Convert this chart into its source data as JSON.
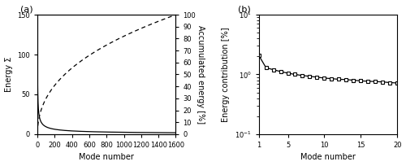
{
  "panel_a": {
    "xlabel": "Mode number",
    "ylabel_left": "Energy Σ",
    "ylabel_right": "Accumulated energy [%]",
    "xlim": [
      0,
      1600
    ],
    "ylim_left": [
      0,
      150
    ],
    "ylim_right": [
      0,
      100
    ],
    "xticks": [
      0,
      200,
      400,
      600,
      800,
      1000,
      1200,
      1400,
      1600
    ],
    "yticks_left": [
      0,
      50,
      100,
      150
    ],
    "yticks_right": [
      0,
      10,
      20,
      30,
      40,
      50,
      60,
      70,
      80,
      90,
      100
    ],
    "label": "(a)",
    "decay_scale": 250,
    "cum_start_pct": 35
  },
  "panel_b": {
    "xlabel": "Mode number",
    "ylabel": "Energy contribution [%]",
    "xlim": [
      1,
      20
    ],
    "ylim_log": [
      -1,
      1
    ],
    "xticks": [
      1,
      5,
      10,
      15,
      20
    ],
    "label": "(b)",
    "mode_numbers": [
      1,
      2,
      3,
      4,
      5,
      6,
      7,
      8,
      9,
      10,
      11,
      12,
      13,
      14,
      15,
      16,
      17,
      18,
      19,
      20
    ],
    "energy_values": [
      2.1,
      1.3,
      1.2,
      1.12,
      1.05,
      1.0,
      0.96,
      0.93,
      0.9,
      0.87,
      0.85,
      0.83,
      0.82,
      0.8,
      0.78,
      0.77,
      0.76,
      0.75,
      0.73,
      0.72
    ]
  },
  "figure_color": "#ffffff",
  "line_color": "#000000",
  "gray_color": "#888888"
}
